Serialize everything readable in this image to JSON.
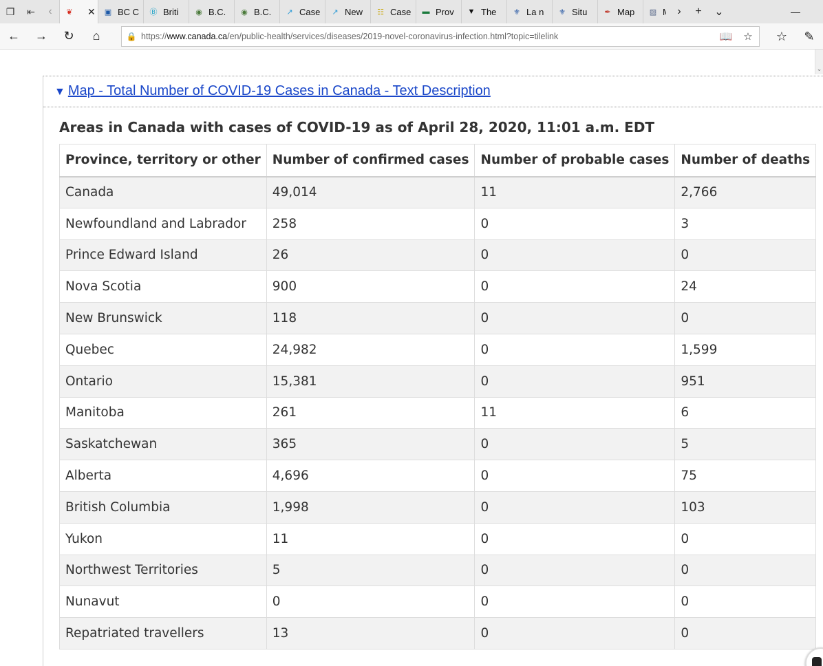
{
  "browser": {
    "tabs": [
      {
        "title": "",
        "fav": "maple-leaf",
        "favColor": "#d52b1e",
        "active": true
      },
      {
        "title": "BC C",
        "fav": "bc-cdc",
        "favColor": "#1e5aa8"
      },
      {
        "title": "Briti",
        "fav": "b-logo",
        "favColor": "#21a3c8"
      },
      {
        "title": "B.C.",
        "fav": "globe",
        "favColor": "#4a7a3a"
      },
      {
        "title": "B.C.",
        "fav": "globe",
        "favColor": "#4a7a3a"
      },
      {
        "title": "Case",
        "fav": "chart",
        "favColor": "#2b9ad6"
      },
      {
        "title": "New",
        "fav": "chart",
        "favColor": "#2b9ad6"
      },
      {
        "title": "Case",
        "fav": "doc",
        "favColor": "#c8a400"
      },
      {
        "title": "Prov",
        "fav": "ontario",
        "favColor": "#1a7a3c"
      },
      {
        "title": "The",
        "fav": "verge",
        "favColor": "#111111"
      },
      {
        "title": "La n",
        "fav": "quebec",
        "favColor": "#1b4fa0"
      },
      {
        "title": "Situ",
        "fav": "quebec",
        "favColor": "#1b4fa0"
      },
      {
        "title": "Map",
        "fav": "pdf",
        "favColor": "#c0392b"
      },
      {
        "title": "M",
        "fav": "image",
        "favColor": "#5a6a8a"
      }
    ],
    "url_prefix": "https://",
    "url_domain": "www.canada.ca",
    "url_path": "/en/public-health/services/diseases/2019-novel-coronavirus-infection.html?topic=tilelink"
  },
  "page": {
    "details_label": "Map - Total Number of COVID-19 Cases in Canada - Text Description",
    "table_caption": "Areas in Canada with cases of COVID-19 as of April 28, 2020, 11:01 a.m. EDT",
    "table": {
      "headers": [
        "Province, territory or other",
        "Number of confirmed cases",
        "Number of probable cases",
        "Number of deaths"
      ],
      "rows": [
        [
          "Canada",
          "49,014",
          "11",
          "2,766"
        ],
        [
          "Newfoundland and Labrador",
          "258",
          "0",
          "3"
        ],
        [
          "Prince Edward Island",
          "26",
          "0",
          "0"
        ],
        [
          "Nova Scotia",
          "900",
          "0",
          "24"
        ],
        [
          "New Brunswick",
          "118",
          "0",
          "0"
        ],
        [
          "Quebec",
          "24,982",
          "0",
          "1,599"
        ],
        [
          "Ontario",
          "15,381",
          "0",
          "951"
        ],
        [
          "Manitoba",
          "261",
          "11",
          "6"
        ],
        [
          "Saskatchewan",
          "365",
          "0",
          "5"
        ],
        [
          "Alberta",
          "4,696",
          "0",
          "75"
        ],
        [
          "British Columbia",
          "1,998",
          "0",
          "103"
        ],
        [
          "Yukon",
          "11",
          "0",
          "0"
        ],
        [
          "Northwest Territories",
          "5",
          "0",
          "0"
        ],
        [
          "Nunavut",
          "0",
          "0",
          "0"
        ],
        [
          "Repatriated travellers",
          "13",
          "0",
          "0"
        ]
      ]
    }
  }
}
